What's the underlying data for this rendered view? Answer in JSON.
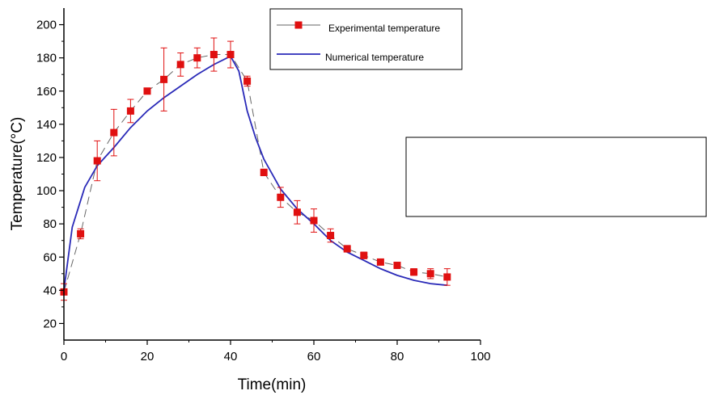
{
  "chart_data": {
    "type": "scatter",
    "title": "",
    "xlabel": "Time(min)",
    "ylabel": "Temperature(°C)",
    "xlim": [
      0,
      100
    ],
    "ylim": [
      10,
      210
    ],
    "xticks": [
      0,
      20,
      40,
      60,
      80,
      100
    ],
    "yticks": [
      20,
      40,
      60,
      80,
      100,
      120,
      140,
      160,
      180,
      200
    ],
    "grid": false,
    "legend_position": "top-right",
    "series": [
      {
        "name": "Experimental temperature",
        "kind": "scatter-with-errorbars-dashed-line",
        "color": "#e01010",
        "line_color": "#666666",
        "x": [
          0,
          4,
          8,
          12,
          16,
          20,
          24,
          28,
          32,
          36,
          40,
          44,
          48,
          52,
          56,
          60,
          64,
          68,
          72,
          76,
          80,
          84,
          88,
          92
        ],
        "y": [
          39,
          74,
          118,
          135,
          148,
          160,
          167,
          176,
          180,
          182,
          182,
          166,
          111,
          96,
          87,
          82,
          73,
          65,
          61,
          57,
          55,
          51,
          50,
          48
        ],
        "err": [
          5,
          3,
          12,
          14,
          7,
          1,
          19,
          7,
          6,
          10,
          8,
          3,
          2,
          6,
          7,
          7,
          4,
          2,
          2,
          1,
          1,
          2,
          3,
          5
        ]
      },
      {
        "name": "Numerical temperature",
        "kind": "line",
        "color": "#2a2ab8",
        "x": [
          0,
          2,
          5,
          8,
          12,
          16,
          20,
          24,
          28,
          32,
          36,
          40,
          42,
          44,
          46,
          48,
          52,
          56,
          60,
          64,
          68,
          72,
          76,
          80,
          84,
          88,
          92
        ],
        "y": [
          40,
          78,
          102,
          115,
          126,
          138,
          148,
          156,
          163,
          170,
          176,
          181,
          172,
          148,
          132,
          119,
          101,
          89,
          80,
          70,
          63,
          58,
          53,
          49,
          46,
          44,
          43
        ]
      }
    ]
  }
}
